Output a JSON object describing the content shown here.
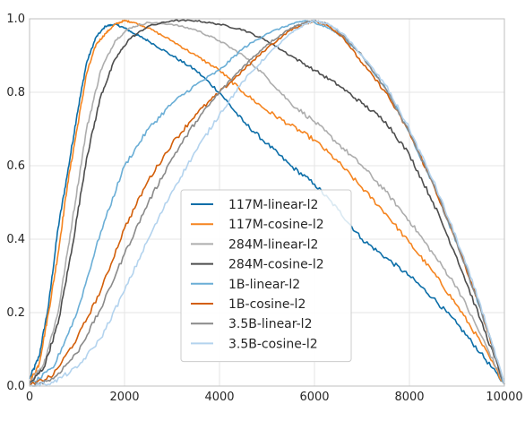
{
  "chart_data": {
    "type": "line",
    "title": "",
    "xlabel": "",
    "ylabel": "",
    "xlim": [
      0,
      10000
    ],
    "ylim": [
      0,
      1.0
    ],
    "grid": true,
    "legend_position": "lower-center",
    "x_ticks": [
      0,
      2000,
      4000,
      6000,
      8000,
      10000
    ],
    "y_ticks": [
      0.0,
      0.2,
      0.4,
      0.6,
      0.8,
      1.0
    ],
    "x_tick_labels": [
      "0",
      "2000",
      "4000",
      "6000",
      "8000",
      "10000"
    ],
    "y_tick_labels": [
      "0.0",
      "0.2",
      "0.4",
      "0.6",
      "0.8",
      "1.0"
    ],
    "series": [
      {
        "name": "117M-linear-l2",
        "color": "#0c6ea8",
        "x": [
          0,
          200,
          400,
          600,
          800,
          1000,
          1200,
          1400,
          1600,
          1800,
          2000,
          2200,
          2500,
          3000,
          3500,
          4000,
          4500,
          5000,
          5500,
          6000,
          6500,
          7000,
          7500,
          8000,
          8500,
          9000,
          9500,
          10000
        ],
        "y": [
          0.02,
          0.08,
          0.22,
          0.43,
          0.58,
          0.74,
          0.88,
          0.95,
          0.98,
          0.985,
          0.975,
          0.96,
          0.94,
          0.9,
          0.86,
          0.8,
          0.72,
          0.66,
          0.6,
          0.55,
          0.48,
          0.4,
          0.35,
          0.3,
          0.24,
          0.17,
          0.09,
          0.005
        ]
      },
      {
        "name": "117M-cosine-l2",
        "color": "#f5841f",
        "x": [
          0,
          200,
          400,
          600,
          800,
          1000,
          1200,
          1400,
          1600,
          1800,
          2000,
          2200,
          2500,
          3000,
          3500,
          4000,
          4500,
          5000,
          5500,
          6000,
          6500,
          7000,
          7500,
          8000,
          8500,
          9000,
          9500,
          10000
        ],
        "y": [
          0.01,
          0.06,
          0.2,
          0.36,
          0.55,
          0.7,
          0.85,
          0.93,
          0.96,
          0.985,
          0.995,
          0.99,
          0.975,
          0.94,
          0.9,
          0.86,
          0.8,
          0.75,
          0.71,
          0.67,
          0.61,
          0.54,
          0.47,
          0.39,
          0.31,
          0.22,
          0.12,
          0.005
        ]
      },
      {
        "name": "284M-linear-l2",
        "color": "#adadad",
        "x": [
          0,
          300,
          600,
          900,
          1200,
          1500,
          1800,
          2100,
          2500,
          3000,
          3500,
          4000,
          4500,
          5000,
          5500,
          6000,
          6500,
          7000,
          7500,
          8000,
          8500,
          9000,
          9500,
          10000
        ],
        "y": [
          0.01,
          0.06,
          0.2,
          0.45,
          0.7,
          0.86,
          0.94,
          0.975,
          0.99,
          0.985,
          0.97,
          0.94,
          0.9,
          0.84,
          0.77,
          0.72,
          0.66,
          0.6,
          0.53,
          0.45,
          0.36,
          0.27,
          0.14,
          0.005
        ]
      },
      {
        "name": "284M-cosine-l2",
        "color": "#4d4d4d",
        "x": [
          0,
          300,
          600,
          900,
          1200,
          1500,
          1800,
          2100,
          2500,
          3000,
          3500,
          4000,
          4500,
          5000,
          5500,
          6000,
          6500,
          7000,
          7500,
          8000,
          8500,
          9000,
          9500,
          10000
        ],
        "y": [
          0.005,
          0.05,
          0.17,
          0.38,
          0.62,
          0.79,
          0.89,
          0.945,
          0.98,
          0.995,
          0.995,
          0.985,
          0.97,
          0.94,
          0.9,
          0.86,
          0.82,
          0.77,
          0.72,
          0.63,
          0.5,
          0.35,
          0.18,
          0.005
        ]
      },
      {
        "name": "1B-linear-l2",
        "color": "#6aaed6",
        "x": [
          0,
          500,
          1000,
          1500,
          2000,
          2500,
          3000,
          3500,
          4000,
          4500,
          5000,
          5500,
          5800,
          6000,
          6300,
          6600,
          7000,
          7500,
          8000,
          8500,
          9000,
          9500,
          10000
        ],
        "y": [
          0.0,
          0.05,
          0.2,
          0.42,
          0.6,
          0.7,
          0.77,
          0.82,
          0.86,
          0.92,
          0.96,
          0.985,
          0.995,
          0.99,
          0.975,
          0.95,
          0.9,
          0.81,
          0.69,
          0.55,
          0.39,
          0.21,
          0.005
        ]
      },
      {
        "name": "1B-cosine-l2",
        "color": "#d35f0a",
        "x": [
          0,
          500,
          1000,
          1500,
          2000,
          2500,
          3000,
          3500,
          4000,
          4500,
          5000,
          5500,
          5800,
          6000,
          6300,
          6600,
          7000,
          7500,
          8000,
          8500,
          9000,
          9500,
          10000
        ],
        "y": [
          0.0,
          0.03,
          0.13,
          0.26,
          0.43,
          0.56,
          0.66,
          0.74,
          0.8,
          0.86,
          0.92,
          0.97,
          0.985,
          0.995,
          0.98,
          0.95,
          0.88,
          0.8,
          0.69,
          0.55,
          0.39,
          0.21,
          0.005
        ]
      },
      {
        "name": "3.5B-linear-l2",
        "color": "#8a8a8a",
        "x": [
          0,
          500,
          1000,
          1500,
          2000,
          2500,
          3000,
          3500,
          4000,
          4500,
          5000,
          5500,
          5800,
          6000,
          6300,
          6600,
          7000,
          7500,
          8000,
          8500,
          9000,
          9500,
          10000
        ],
        "y": [
          0.0,
          0.02,
          0.09,
          0.21,
          0.36,
          0.5,
          0.62,
          0.72,
          0.8,
          0.87,
          0.93,
          0.975,
          0.99,
          0.995,
          0.985,
          0.955,
          0.9,
          0.81,
          0.69,
          0.55,
          0.39,
          0.21,
          0.005
        ]
      },
      {
        "name": "3.5B-cosine-l2",
        "color": "#b3d3ee",
        "x": [
          0,
          500,
          1000,
          1500,
          2000,
          2500,
          3000,
          3500,
          4000,
          4500,
          5000,
          5500,
          5800,
          6000,
          6300,
          6600,
          7000,
          7500,
          8000,
          8500,
          9000,
          9500,
          10000
        ],
        "y": [
          0.0,
          0.01,
          0.05,
          0.13,
          0.26,
          0.4,
          0.53,
          0.64,
          0.74,
          0.83,
          0.9,
          0.96,
          0.985,
          0.995,
          0.985,
          0.96,
          0.9,
          0.82,
          0.7,
          0.56,
          0.4,
          0.22,
          0.005
        ]
      }
    ]
  }
}
